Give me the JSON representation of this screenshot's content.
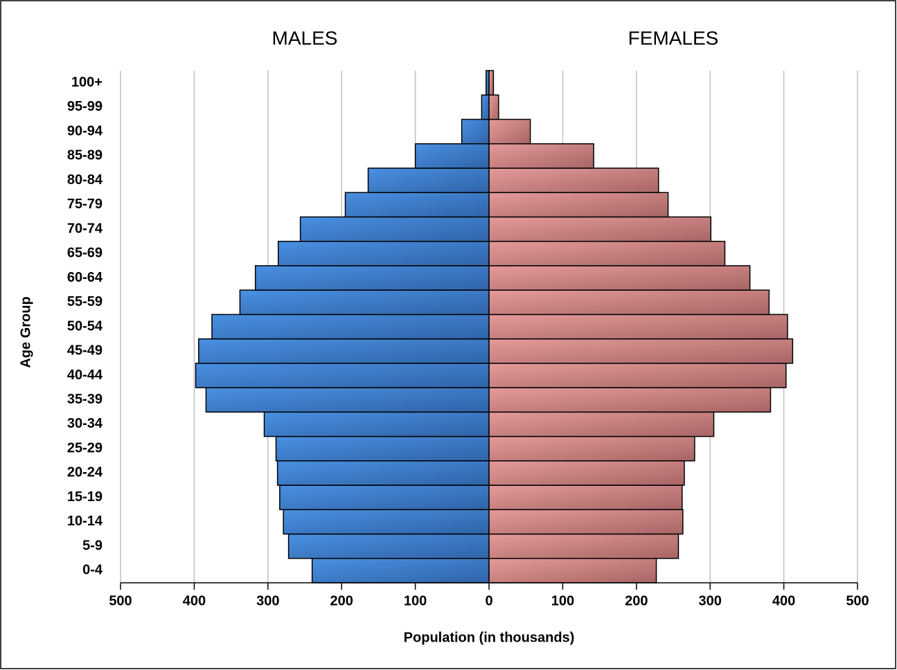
{
  "chart_data": {
    "type": "pyramid",
    "y_axis_title": "Age Group",
    "x_axis_title": "Population (in thousands)",
    "categories": [
      "0-4",
      "5-9",
      "10-14",
      "15-19",
      "20-24",
      "25-29",
      "30-34",
      "35-39",
      "40-44",
      "45-49",
      "50-54",
      "55-59",
      "60-64",
      "65-69",
      "70-74",
      "75-79",
      "80-84",
      "85-89",
      "90-94",
      "95-99",
      "100+"
    ],
    "series": [
      {
        "name": "MALES",
        "color": "#3b7fd4",
        "values": [
          -240,
          -272,
          -279,
          -284,
          -287,
          -289,
          -305,
          -384,
          -398,
          -394,
          -376,
          -338,
          -317,
          -286,
          -256,
          -195,
          -164,
          -100,
          -37,
          -10,
          -4
        ]
      },
      {
        "name": "FEMALES",
        "color": "#d98a8a",
        "values": [
          227,
          257,
          263,
          262,
          265,
          279,
          305,
          382,
          403,
          412,
          405,
          380,
          354,
          320,
          301,
          243,
          230,
          142,
          56,
          13,
          6
        ]
      }
    ],
    "xlim": [
      -500,
      500
    ],
    "xticks": [
      {
        "value": -500,
        "label": "500"
      },
      {
        "value": -400,
        "label": "400"
      },
      {
        "value": -300,
        "label": "300"
      },
      {
        "value": -200,
        "label": "200"
      },
      {
        "value": -100,
        "label": "100"
      },
      0,
      100,
      200,
      300,
      400,
      500
    ],
    "grid": true
  }
}
